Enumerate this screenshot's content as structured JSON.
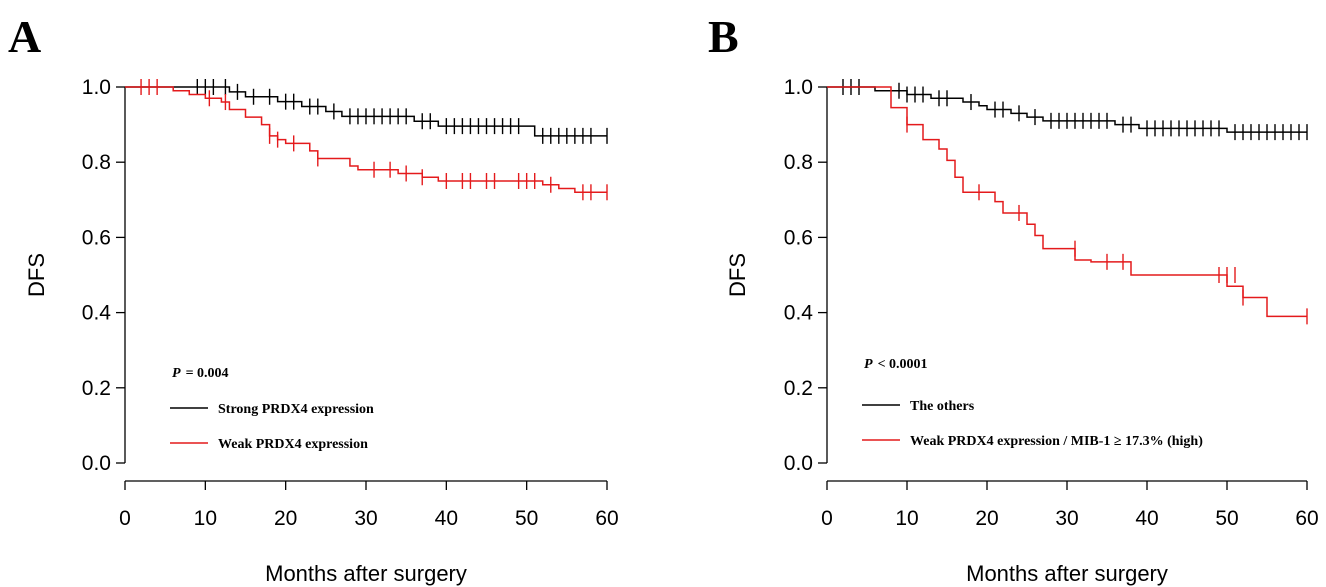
{
  "chart_data": [
    {
      "panel_label": "A",
      "type": "line",
      "subtype": "kaplan-meier",
      "xlabel": "Months after surgery",
      "ylabel": "DFS",
      "xlim": [
        0,
        60
      ],
      "ylim": [
        0,
        1
      ],
      "x_ticks": [
        "0",
        "10",
        "20",
        "30",
        "40",
        "50",
        "60"
      ],
      "y_ticks": [
        "0.0",
        "0.2",
        "0.4",
        "0.6",
        "0.8",
        "1.0"
      ],
      "annotation": {
        "p_symbol": "P",
        "p_rest": "= 0.004"
      },
      "legend_position": "bottom-left",
      "series": [
        {
          "name": "Strong PRDX4 expression",
          "color": "#000000",
          "steps": [
            [
              0,
              1.0
            ],
            [
              13,
              0.987
            ],
            [
              15,
              0.974
            ],
            [
              19,
              0.961
            ],
            [
              22,
              0.948
            ],
            [
              25,
              0.935
            ],
            [
              27,
              0.922
            ],
            [
              36,
              0.909
            ],
            [
              39,
              0.896
            ],
            [
              51,
              0.87
            ],
            [
              60,
              0.87
            ]
          ],
          "censored": [
            [
              9,
              1.0
            ],
            [
              10,
              1.0
            ],
            [
              11,
              1.0
            ],
            [
              12.5,
              1.0
            ],
            [
              14,
              0.987
            ],
            [
              16,
              0.974
            ],
            [
              18,
              0.974
            ],
            [
              20,
              0.961
            ],
            [
              21,
              0.961
            ],
            [
              23,
              0.948
            ],
            [
              24,
              0.948
            ],
            [
              26,
              0.935
            ],
            [
              28,
              0.922
            ],
            [
              29,
              0.922
            ],
            [
              30,
              0.922
            ],
            [
              31,
              0.922
            ],
            [
              32,
              0.922
            ],
            [
              33,
              0.922
            ],
            [
              34,
              0.922
            ],
            [
              35,
              0.922
            ],
            [
              37,
              0.909
            ],
            [
              38,
              0.909
            ],
            [
              40,
              0.896
            ],
            [
              41,
              0.896
            ],
            [
              42,
              0.896
            ],
            [
              43,
              0.896
            ],
            [
              44,
              0.896
            ],
            [
              45,
              0.896
            ],
            [
              46,
              0.896
            ],
            [
              47,
              0.896
            ],
            [
              48,
              0.896
            ],
            [
              49,
              0.896
            ],
            [
              52,
              0.87
            ],
            [
              53,
              0.87
            ],
            [
              54,
              0.87
            ],
            [
              55,
              0.87
            ],
            [
              56,
              0.87
            ],
            [
              57,
              0.87
            ],
            [
              58,
              0.87
            ],
            [
              60,
              0.87
            ]
          ]
        },
        {
          "name": "Weak PRDX4 expression",
          "color": "#e41a1c",
          "steps": [
            [
              0,
              1.0
            ],
            [
              6,
              0.99
            ],
            [
              8,
              0.98
            ],
            [
              10,
              0.97
            ],
            [
              12,
              0.96
            ],
            [
              13,
              0.94
            ],
            [
              15,
              0.92
            ],
            [
              17,
              0.9
            ],
            [
              18,
              0.87
            ],
            [
              19,
              0.86
            ],
            [
              20,
              0.85
            ],
            [
              23,
              0.83
            ],
            [
              24,
              0.81
            ],
            [
              28,
              0.79
            ],
            [
              29,
              0.78
            ],
            [
              34,
              0.77
            ],
            [
              37,
              0.76
            ],
            [
              39,
              0.75
            ],
            [
              52,
              0.74
            ],
            [
              54,
              0.73
            ],
            [
              56,
              0.72
            ],
            [
              60,
              0.72
            ]
          ],
          "censored": [
            [
              2,
              1.0
            ],
            [
              3,
              1.0
            ],
            [
              4,
              1.0
            ],
            [
              10.5,
              0.97
            ],
            [
              12.5,
              0.96
            ],
            [
              18,
              0.87
            ],
            [
              19,
              0.86
            ],
            [
              21,
              0.85
            ],
            [
              24,
              0.81
            ],
            [
              31,
              0.78
            ],
            [
              33,
              0.78
            ],
            [
              35,
              0.77
            ],
            [
              37,
              0.76
            ],
            [
              40,
              0.75
            ],
            [
              42,
              0.75
            ],
            [
              43,
              0.75
            ],
            [
              45,
              0.75
            ],
            [
              46,
              0.75
            ],
            [
              49,
              0.75
            ],
            [
              50,
              0.75
            ],
            [
              51,
              0.75
            ],
            [
              53,
              0.74
            ],
            [
              57,
              0.72
            ],
            [
              58,
              0.72
            ],
            [
              60,
              0.72
            ]
          ]
        }
      ]
    },
    {
      "panel_label": "B",
      "type": "line",
      "subtype": "kaplan-meier",
      "xlabel": "Months after surgery",
      "ylabel": "DFS",
      "xlim": [
        0,
        60
      ],
      "ylim": [
        0,
        1
      ],
      "x_ticks": [
        "0",
        "10",
        "20",
        "30",
        "40",
        "50",
        "60"
      ],
      "y_ticks": [
        "0.0",
        "0.2",
        "0.4",
        "0.6",
        "0.8",
        "1.0"
      ],
      "annotation": {
        "p_symbol": "P",
        "p_rest": "< 0.0001"
      },
      "legend_position": "bottom-left",
      "series": [
        {
          "name": "The others",
          "color": "#000000",
          "steps": [
            [
              0,
              1.0
            ],
            [
              6,
              0.99
            ],
            [
              10,
              0.98
            ],
            [
              13,
              0.97
            ],
            [
              17,
              0.96
            ],
            [
              19,
              0.95
            ],
            [
              20,
              0.94
            ],
            [
              23,
              0.93
            ],
            [
              25,
              0.92
            ],
            [
              27,
              0.91
            ],
            [
              36,
              0.9
            ],
            [
              39,
              0.89
            ],
            [
              50,
              0.88
            ],
            [
              60,
              0.88
            ]
          ],
          "censored": [
            [
              2,
              1.0
            ],
            [
              3,
              1.0
            ],
            [
              4,
              1.0
            ],
            [
              9,
              0.99
            ],
            [
              10,
              0.98
            ],
            [
              11,
              0.98
            ],
            [
              12,
              0.98
            ],
            [
              14,
              0.97
            ],
            [
              15,
              0.97
            ],
            [
              18,
              0.96
            ],
            [
              21,
              0.94
            ],
            [
              22,
              0.94
            ],
            [
              24,
              0.93
            ],
            [
              26,
              0.92
            ],
            [
              28,
              0.91
            ],
            [
              29,
              0.91
            ],
            [
              30,
              0.91
            ],
            [
              31,
              0.91
            ],
            [
              32,
              0.91
            ],
            [
              33,
              0.91
            ],
            [
              34,
              0.91
            ],
            [
              35,
              0.91
            ],
            [
              37,
              0.9
            ],
            [
              38,
              0.9
            ],
            [
              40,
              0.89
            ],
            [
              41,
              0.89
            ],
            [
              42,
              0.89
            ],
            [
              43,
              0.89
            ],
            [
              44,
              0.89
            ],
            [
              45,
              0.89
            ],
            [
              46,
              0.89
            ],
            [
              47,
              0.89
            ],
            [
              48,
              0.89
            ],
            [
              49,
              0.89
            ],
            [
              51,
              0.88
            ],
            [
              52,
              0.88
            ],
            [
              53,
              0.88
            ],
            [
              54,
              0.88
            ],
            [
              55,
              0.88
            ],
            [
              56,
              0.88
            ],
            [
              57,
              0.88
            ],
            [
              58,
              0.88
            ],
            [
              59,
              0.88
            ],
            [
              60,
              0.88
            ]
          ]
        },
        {
          "name": "Weak PRDX4 expression / MIB-1 ≥ 17.3% (high)",
          "color": "#e41a1c",
          "steps": [
            [
              0,
              1.0
            ],
            [
              8,
              0.945
            ],
            [
              10,
              0.9
            ],
            [
              12,
              0.86
            ],
            [
              14,
              0.835
            ],
            [
              15,
              0.805
            ],
            [
              16,
              0.76
            ],
            [
              17,
              0.72
            ],
            [
              21,
              0.695
            ],
            [
              22,
              0.665
            ],
            [
              25,
              0.635
            ],
            [
              26,
              0.605
            ],
            [
              27,
              0.57
            ],
            [
              31,
              0.54
            ],
            [
              33,
              0.535
            ],
            [
              38,
              0.5
            ],
            [
              50,
              0.47
            ],
            [
              52,
              0.44
            ],
            [
              55,
              0.39
            ],
            [
              60,
              0.39
            ]
          ],
          "censored": [
            [
              10,
              0.9
            ],
            [
              19,
              0.72
            ],
            [
              24,
              0.665
            ],
            [
              31,
              0.57
            ],
            [
              35,
              0.535
            ],
            [
              37,
              0.535
            ],
            [
              49,
              0.5
            ],
            [
              50,
              0.5
            ],
            [
              51,
              0.5
            ],
            [
              52,
              0.44
            ],
            [
              60,
              0.39
            ]
          ]
        }
      ]
    }
  ]
}
